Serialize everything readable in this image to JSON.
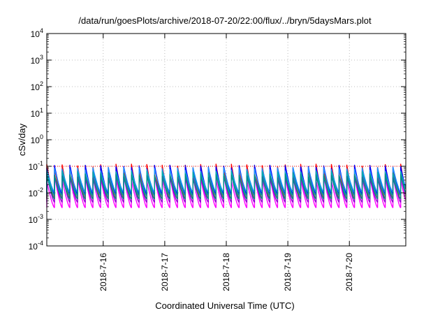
{
  "chart_data": {
    "type": "line",
    "title": "/data/run/goesPlots/archive/2018-07-20/22:00/flux/../bryn/5daysMars.plot",
    "xlabel": "Coordinated Universal Time (UTC)",
    "ylabel": "cSv/day",
    "y_scale": "log",
    "ylim": [
      0.0001,
      10000
    ],
    "y_ticks": [
      {
        "base": "10",
        "exp": "-4",
        "value": 0.0001
      },
      {
        "base": "10",
        "exp": "-3",
        "value": 0.001
      },
      {
        "base": "10",
        "exp": "-2",
        "value": 0.01
      },
      {
        "base": "10",
        "exp": "-1",
        "value": 0.1
      },
      {
        "base": "10",
        "exp": "0",
        "value": 1
      },
      {
        "base": "10",
        "exp": "1",
        "value": 10
      },
      {
        "base": "10",
        "exp": "2",
        "value": 100
      },
      {
        "base": "10",
        "exp": "3",
        "value": 1000
      },
      {
        "base": "10",
        "exp": "4",
        "value": 10000
      }
    ],
    "xlim": [
      "2018-07-15 02:00",
      "2018-07-20 22:00"
    ],
    "x_ticks": [
      {
        "label": "2018-7-16",
        "value": "2018-07-16 00:00"
      },
      {
        "label": "2018-7-17",
        "value": "2018-07-17 00:00"
      },
      {
        "label": "2018-7-18",
        "value": "2018-07-18 00:00"
      },
      {
        "label": "2018-7-19",
        "value": "2018-07-19 00:00"
      },
      {
        "label": "2018-7-20",
        "value": "2018-07-20 00:00"
      }
    ],
    "grid": true,
    "reference_line": {
      "value": 0.1,
      "color": "#ff0000",
      "style": "dotted"
    },
    "pattern": {
      "period_hours": 3,
      "start": "2018-07-15 02:00",
      "note": "sawtooth: sharp rise each 3 h followed by decay"
    },
    "series": [
      {
        "color": "#ff00ff",
        "peak": 0.045,
        "trough": 0.0028
      },
      {
        "color": "#9400d3",
        "peak": 0.06,
        "trough": 0.0045
      },
      {
        "color": "#ff0000",
        "peak": 0.12,
        "trough": 0.006
      },
      {
        "color": "#0000ff",
        "peak": 0.11,
        "trough": 0.009
      },
      {
        "color": "#1e90ff",
        "peak": 0.09,
        "trough": 0.011
      },
      {
        "color": "#00aaaa",
        "peak": 0.065,
        "trough": 0.008
      },
      {
        "color": "#008b8b",
        "peak": 0.05,
        "trough": 0.006
      }
    ]
  }
}
